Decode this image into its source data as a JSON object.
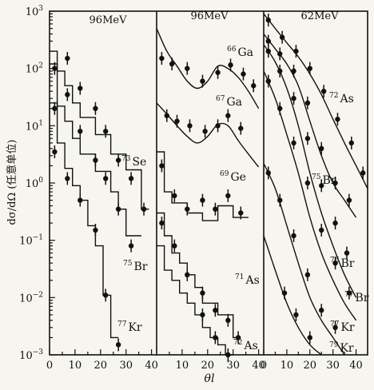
{
  "chart_data": {
    "type": "scatter",
    "ylabel": "dσ/dΩ (任意单位)",
    "xlabel": "θl",
    "yscale": "log",
    "ylim": [
      0.001,
      1000
    ],
    "y_ticks": [
      "10^3",
      "10^2",
      "10^1",
      "10^0",
      "10^-1",
      "10^-2",
      "10^-3"
    ],
    "panels": [
      {
        "energy_label": "96MeV",
        "xlim": [
          0,
          42
        ],
        "x_ticks": [
          "0",
          "10",
          "20",
          "30",
          "40"
        ],
        "grid": false,
        "series": [
          {
            "name": "73Se",
            "label_sup": "73",
            "label_base": "Se",
            "x": [
              2,
              7,
              12,
              18,
              22,
              27,
              32,
              37
            ],
            "y": [
              100,
              150,
              45,
              20,
              8,
              2.5,
              1.2,
              0.35
            ],
            "fit": "histogram",
            "fit_steps": [
              [
                0,
                3,
                200
              ],
              [
                3,
                6,
                90
              ],
              [
                6,
                9,
                50
              ],
              [
                9,
                12,
                25
              ],
              [
                12,
                15,
                14
              ],
              [
                15,
                18,
                14
              ],
              [
                18,
                21,
                7
              ],
              [
                21,
                24,
                7
              ],
              [
                24,
                27,
                3.2
              ],
              [
                27,
                30,
                3.2
              ],
              [
                30,
                33,
                1.7
              ],
              [
                33,
                36,
                1.7
              ],
              [
                36,
                39,
                0.35
              ]
            ]
          },
          {
            "name": "75Br",
            "label_sup": "75",
            "label_base": "Br",
            "x": [
              2,
              7,
              12,
              18,
              22,
              27,
              32
            ],
            "y": [
              20,
              35,
              8,
              2.5,
              1.2,
              0.35,
              0.08
            ],
            "fit": "histogram",
            "fit_steps": [
              [
                0,
                3,
                120
              ],
              [
                3,
                6,
                22
              ],
              [
                6,
                9,
                12
              ],
              [
                9,
                12,
                6
              ],
              [
                12,
                15,
                3.2
              ],
              [
                15,
                18,
                3.2
              ],
              [
                18,
                21,
                1.6
              ],
              [
                21,
                24,
                1.6
              ],
              [
                24,
                27,
                0.7
              ],
              [
                27,
                30,
                0.35
              ],
              [
                30,
                33,
                0.12
              ],
              [
                33,
                36,
                0.12
              ]
            ]
          },
          {
            "name": "77Kr",
            "label_sup": "77",
            "label_base": "Kr",
            "x": [
              2,
              7,
              12,
              18,
              22,
              27
            ],
            "y": [
              3.5,
              1.2,
              0.5,
              0.15,
              0.011,
              0.0015
            ],
            "fit": "histogram",
            "fit_steps": [
              [
                0,
                3,
                25
              ],
              [
                3,
                6,
                5
              ],
              [
                6,
                9,
                1.8
              ],
              [
                9,
                12,
                0.9
              ],
              [
                12,
                15,
                0.5
              ],
              [
                15,
                18,
                0.18
              ],
              [
                18,
                21,
                0.08
              ],
              [
                21,
                24,
                0.011
              ],
              [
                24,
                27,
                0.002
              ]
            ]
          }
        ]
      },
      {
        "energy_label": "96MeV",
        "xlim": [
          0,
          42
        ],
        "x_ticks": [
          "10",
          "20",
          "30",
          "40"
        ],
        "grid": false,
        "series": [
          {
            "name": "66Ga",
            "label_sup": "66",
            "label_base": "Ga",
            "x": [
              2,
              6,
              12,
              18,
              24,
              29,
              34,
              38
            ],
            "y": [
              150,
              120,
              100,
              60,
              85,
              115,
              80,
              50
            ],
            "fit": "curve",
            "fit_x": [
              0,
              4,
              8,
              12,
              16,
              20,
              24,
              28,
              32,
              36,
              40
            ],
            "fit_y": [
              500,
              200,
              110,
              60,
              45,
              60,
              110,
              100,
              70,
              40,
              20
            ]
          },
          {
            "name": "67Ga",
            "label_sup": "67",
            "label_base": "Ga",
            "x": [
              4,
              8,
              13,
              19,
              24,
              28,
              33
            ],
            "y": [
              15,
              12,
              10,
              8,
              10,
              15,
              9
            ],
            "fit": "curve",
            "fit_x": [
              0,
              4,
              8,
              12,
              16,
              20,
              24,
              28,
              32,
              36,
              40
            ],
            "fit_y": [
              25,
              16,
              10,
              6.5,
              5,
              6.5,
              10.5,
              10,
              5.5,
              3.2,
              1.9
            ]
          },
          {
            "name": "69Ge",
            "label_sup": "69",
            "label_base": "Ge",
            "x": [
              2,
              7,
              12,
              18,
              23,
              28,
              33
            ],
            "y": [
              2,
              0.6,
              0.35,
              0.5,
              0.35,
              0.6,
              0.3
            ],
            "fit": "histogram",
            "fit_steps": [
              [
                0,
                3,
                3.5
              ],
              [
                3,
                6,
                0.7
              ],
              [
                6,
                9,
                0.45
              ],
              [
                9,
                12,
                0.45
              ],
              [
                12,
                15,
                0.3
              ],
              [
                15,
                18,
                0.3
              ],
              [
                18,
                21,
                0.22
              ],
              [
                21,
                24,
                0.22
              ],
              [
                24,
                27,
                0.4
              ],
              [
                27,
                30,
                0.4
              ],
              [
                30,
                33,
                0.25
              ],
              [
                33,
                36,
                0.25
              ]
            ]
          },
          {
            "name": "71As",
            "label_sup": "71",
            "label_base": "As",
            "x": [
              2,
              7,
              12,
              18,
              23,
              28,
              32
            ],
            "y": [
              0.2,
              0.08,
              0.025,
              0.012,
              0.006,
              0.004,
              0.002
            ],
            "fit": "histogram",
            "fit_steps": [
              [
                0,
                3,
                0.3
              ],
              [
                3,
                6,
                0.12
              ],
              [
                6,
                9,
                0.06
              ],
              [
                9,
                12,
                0.04
              ],
              [
                12,
                15,
                0.025
              ],
              [
                15,
                18,
                0.015
              ],
              [
                18,
                21,
                0.008
              ],
              [
                21,
                24,
                0.008
              ],
              [
                24,
                27,
                0.005
              ],
              [
                27,
                30,
                0.005
              ],
              [
                30,
                33,
                0.002
              ]
            ]
          },
          {
            "name": "72As",
            "label_sup": "72",
            "label_base": "As",
            "x": [
              18,
              23,
              28
            ],
            "y": [
              0.005,
              0.002,
              0.001
            ],
            "fit": "histogram",
            "fit_steps": [
              [
                0,
                3,
                0.08
              ],
              [
                3,
                6,
                0.03
              ],
              [
                6,
                9,
                0.02
              ],
              [
                9,
                12,
                0.012
              ],
              [
                12,
                15,
                0.008
              ],
              [
                15,
                18,
                0.005
              ],
              [
                18,
                21,
                0.003
              ],
              [
                21,
                24,
                0.002
              ],
              [
                24,
                27,
                0.0015
              ],
              [
                27,
                30,
                0.001
              ]
            ]
          }
        ]
      },
      {
        "energy_label": "62MeV",
        "xlim": [
          0,
          45
        ],
        "x_ticks": [
          "0",
          "10",
          "20",
          "30",
          "40"
        ],
        "grid": false,
        "series": [
          {
            "name": "72As",
            "label_sup": "72",
            "label_base": "As",
            "x": [
              2,
              8,
              14,
              20,
              26,
              32,
              38,
              43
            ],
            "y": [
              700,
              350,
              200,
              100,
              40,
              13,
              5,
              1.5
            ],
            "fit": "curve",
            "fit_x": [
              0,
              5,
              10,
              15,
              20,
              25,
              30,
              35,
              40,
              45
            ],
            "fit_y": [
              900,
              500,
              280,
              160,
              80,
              35,
              13,
              5,
              2,
              0.8
            ]
          },
          {
            "name": "75Br",
            "label_sup": "75",
            "label_base": "Br",
            "x": [
              2,
              7,
              13,
              19,
              25,
              31,
              37
            ],
            "y": [
              300,
              180,
              90,
              25,
              4,
              1,
              0.5
            ],
            "fit": "curve",
            "fit_x": [
              0,
              5,
              10,
              15,
              20,
              25,
              30,
              35,
              40
            ],
            "fit_y": [
              400,
              220,
              120,
              50,
              12,
              3,
              1,
              0.5,
              0.25
            ]
          },
          {
            "name": "76Br",
            "label_sup": "76",
            "label_base": "Br",
            "x": [
              2,
              7,
              13,
              19,
              25,
              31,
              36
            ],
            "y": [
              200,
              90,
              30,
              6,
              0.9,
              0.2,
              0.06
            ],
            "fit": "curve",
            "fit_x": [
              0,
              5,
              10,
              15,
              20,
              25,
              30,
              35,
              40
            ],
            "fit_y": [
              260,
              130,
              45,
              10,
              1.5,
              0.3,
              0.08,
              0.025,
              0.01
            ]
          },
          {
            "name": "77Br",
            "label_sup": "77",
            "label_base": "Br",
            "x": [
              2,
              7,
              13,
              19,
              25,
              31,
              37
            ],
            "y": [
              60,
              20,
              5,
              1,
              0.15,
              0.04,
              0.012
            ],
            "fit": "curve",
            "fit_x": [
              0,
              5,
              10,
              15,
              20,
              25,
              30,
              35,
              40
            ],
            "fit_y": [
              90,
              30,
              7,
              1.5,
              0.25,
              0.06,
              0.02,
              0.008,
              0.004
            ]
          },
          {
            "name": "77Kr",
            "label_sup": "77",
            "label_base": "Kr",
            "x": [
              2,
              7,
              13,
              19,
              25,
              31
            ],
            "y": [
              1.5,
              0.5,
              0.12,
              0.025,
              0.006,
              0.003
            ],
            "fit": "curve",
            "fit_x": [
              0,
              5,
              10,
              15,
              20,
              25,
              30,
              35
            ],
            "fit_y": [
              2.2,
              0.8,
              0.18,
              0.04,
              0.01,
              0.004,
              0.002,
              0.001
            ]
          },
          {
            "name": "79Kr",
            "label_sup": "79",
            "label_base": "Kr",
            "x": [
              9,
              14,
              20
            ],
            "y": [
              0.012,
              0.005,
              0.002
            ],
            "fit": "curve",
            "fit_x": [
              0,
              5,
              10,
              15,
              20,
              25
            ],
            "fit_y": [
              0.12,
              0.03,
              0.008,
              0.003,
              0.0015,
              0.001
            ]
          }
        ]
      }
    ]
  }
}
